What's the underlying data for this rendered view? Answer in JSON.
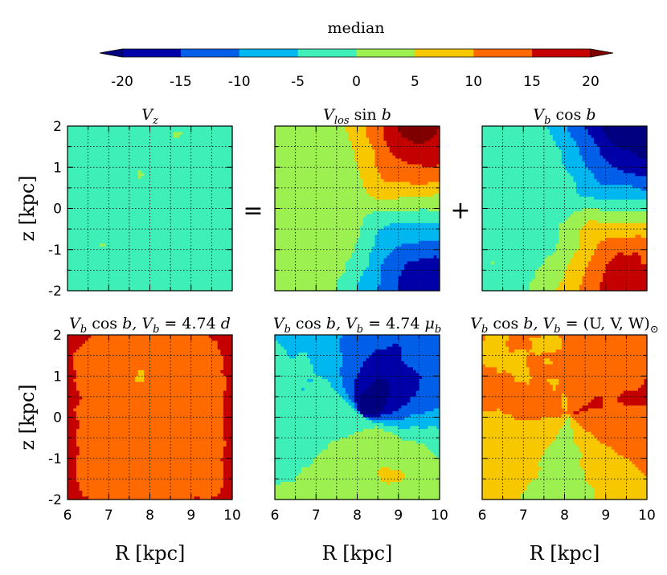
{
  "chart_data": {
    "type": "heatmap",
    "colorbar": {
      "label": "median",
      "ticks": [
        "-20",
        "-15",
        "-10",
        "-5",
        "0",
        "5",
        "10",
        "15",
        "20"
      ],
      "levels": [
        -20,
        -15,
        -10,
        -5,
        0,
        5,
        10,
        15,
        20
      ],
      "colors": [
        "#0000a8",
        "#005fe8",
        "#00b7f0",
        "#3ef0b8",
        "#9cf050",
        "#f7c800",
        "#ff6a00",
        "#c40000"
      ],
      "extend_low_color": "#000080",
      "extend_high_color": "#800000",
      "extend": "both"
    },
    "grid": true,
    "operators": [
      "=",
      "+"
    ],
    "xlabel": "R [kpc]",
    "ylabel": "z [kpc]",
    "xticks": [
      "6",
      "7",
      "8",
      "9",
      "10"
    ],
    "yticks": [
      "2",
      "1",
      "0",
      "-1",
      "-2"
    ],
    "xlim": [
      6,
      10
    ],
    "ylim": [
      -2,
      2
    ],
    "panels": [
      {
        "title": "V_z",
        "title_parts": [
          [
            "V",
            "n"
          ],
          [
            "z",
            "sub"
          ]
        ],
        "pattern": "noise",
        "amp": 3
      },
      {
        "title": "V_los sin b",
        "title_parts": [
          [
            "V",
            "n"
          ],
          [
            "los",
            "sub"
          ],
          [
            " sin ",
            "rm"
          ],
          [
            "b",
            "n"
          ]
        ],
        "pattern": "los",
        "amp": 21
      },
      {
        "title": "V_b cos b",
        "title_parts": [
          [
            "V",
            "n"
          ],
          [
            "b",
            "sub"
          ],
          [
            " cos ",
            "rm"
          ],
          [
            "b",
            "n"
          ]
        ],
        "pattern": "vbcos",
        "amp": 21
      },
      {
        "title": "V_b cos b, V_b = 4.74 d",
        "title_parts": [
          [
            "V",
            "n"
          ],
          [
            "b",
            "sub"
          ],
          [
            " cos ",
            "rm"
          ],
          [
            "b, ",
            "n"
          ],
          [
            "V",
            "n"
          ],
          [
            "b",
            "sub"
          ],
          [
            " = 4.74 ",
            "rm"
          ],
          [
            "d",
            "n"
          ]
        ],
        "pattern": "dist",
        "amp": 14
      },
      {
        "title": "V_b cos b, V_b = 4.74 μ_b",
        "title_parts": [
          [
            "V",
            "n"
          ],
          [
            "b",
            "sub"
          ],
          [
            " cos ",
            "rm"
          ],
          [
            "b, ",
            "n"
          ],
          [
            "V",
            "n"
          ],
          [
            "b",
            "sub"
          ],
          [
            " = 4.74 ",
            "rm"
          ],
          [
            "μ",
            "n"
          ],
          [
            "b",
            "sub"
          ]
        ],
        "pattern": "mu",
        "amp": 16
      },
      {
        "title": "V_b cos b, V_b = (U, V, W)_⊙",
        "title_parts": [
          [
            "V",
            "n"
          ],
          [
            "b",
            "sub"
          ],
          [
            " cos ",
            "rm"
          ],
          [
            "b, ",
            "n"
          ],
          [
            "V",
            "n"
          ],
          [
            "b",
            "sub"
          ],
          [
            " = (U, V, W)",
            "rm"
          ],
          [
            "⊙",
            "sub"
          ]
        ],
        "pattern": "solar",
        "amp": 12
      }
    ]
  }
}
